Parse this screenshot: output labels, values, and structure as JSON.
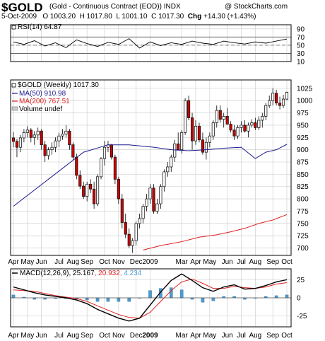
{
  "header": {
    "symbol": "$GOLD",
    "description": "(Gold - Continuous Contract (EOD))",
    "exchange": "INDX",
    "watermark": "@ StockCharts.com",
    "date": "5-Oct-2009",
    "quote_open": "O 1003.20",
    "quote_high": "H 1017.80",
    "quote_low": "L 1001.10",
    "quote_close": "C 1017.30",
    "quote_change_label": "Chg",
    "quote_change": "+14.30 (+1.43%)"
  },
  "colors": {
    "up": "#ffffff",
    "down": "#cc0000",
    "ma50": "#1a1a8c",
    "ma200": "#dd2222",
    "hist": "#4a9bd0",
    "grid": "#c9c9c9",
    "frame": "#000000",
    "macd": "#000000",
    "signal": "#dd2222"
  },
  "x_axis": {
    "top_labels": [
      "Apr",
      "May",
      "Jun",
      "Jul",
      "Aug",
      "Sep",
      "Oct",
      "Nov",
      "Dec",
      "2009",
      "Mar",
      "Apr",
      "May",
      "Jun",
      "Jul",
      "Aug",
      "Sep",
      "Oct"
    ],
    "bottom_labels": [
      "Apr",
      "May",
      "Jun",
      "Jul",
      "Aug",
      "Sep",
      "Oct",
      "Nov",
      "Dec",
      "2009",
      "Mar",
      "Apr",
      "May",
      "Jun",
      "Jul",
      "Aug",
      "Sep",
      "Oct"
    ]
  },
  "chart_data": [
    {
      "type": "line",
      "panel": "rsi",
      "legend": "RSI(14) 64.87",
      "ylim": [
        10,
        100
      ],
      "yticks": [
        10,
        30,
        50,
        70,
        90
      ],
      "levels": [
        30,
        50,
        70
      ],
      "x_weeks": [
        0,
        3,
        6,
        9,
        12,
        15,
        18,
        21,
        24,
        27,
        30,
        33,
        36,
        39,
        42,
        45,
        48,
        51,
        54,
        57,
        60,
        63,
        66,
        69,
        72,
        75,
        78
      ],
      "values": [
        58,
        52,
        61,
        48,
        56,
        44,
        63,
        54,
        47,
        57,
        52,
        66,
        43,
        58,
        49,
        56,
        52,
        60,
        55,
        52,
        60,
        56,
        53,
        58,
        55,
        60,
        65
      ]
    },
    {
      "type": "candlestick",
      "panel": "price",
      "title": "$GOLD (Weekly) 1017.30",
      "ylim": [
        685,
        1042
      ],
      "yticks": [
        700,
        725,
        750,
        775,
        800,
        825,
        850,
        875,
        900,
        925,
        950,
        975,
        1000,
        1025
      ],
      "week_start": "2008-04-07",
      "weeks": 79,
      "tick_weeks": [
        0,
        4,
        8,
        13,
        17,
        21,
        26,
        30,
        35,
        39,
        48,
        52,
        56,
        61,
        65,
        69,
        74,
        78
      ],
      "ohlc": [
        [
          924,
          936,
          905,
          917
        ],
        [
          917,
          922,
          885,
          905
        ],
        [
          905,
          930,
          895,
          924
        ],
        [
          924,
          942,
          915,
          935
        ],
        [
          935,
          948,
          925,
          940
        ],
        [
          940,
          944,
          915,
          925
        ],
        [
          925,
          938,
          910,
          930
        ],
        [
          930,
          945,
          920,
          938
        ],
        [
          938,
          942,
          900,
          910
        ],
        [
          910,
          918,
          875,
          888
        ],
        [
          888,
          905,
          880,
          900
        ],
        [
          900,
          915,
          890,
          905
        ],
        [
          905,
          925,
          895,
          918
        ],
        [
          918,
          935,
          905,
          928
        ],
        [
          928,
          942,
          920,
          932
        ],
        [
          932,
          950,
          925,
          938
        ],
        [
          938,
          942,
          900,
          910
        ],
        [
          910,
          915,
          880,
          885
        ],
        [
          885,
          892,
          840,
          848
        ],
        [
          848,
          858,
          820,
          826
        ],
        [
          826,
          835,
          800,
          805
        ],
        [
          805,
          835,
          795,
          830
        ],
        [
          830,
          840,
          812,
          820
        ],
        [
          820,
          835,
          780,
          790
        ],
        [
          790,
          850,
          785,
          845
        ],
        [
          845,
          885,
          840,
          882
        ],
        [
          882,
          918,
          868,
          905
        ],
        [
          905,
          918,
          895,
          910
        ],
        [
          910,
          912,
          880,
          885
        ],
        [
          885,
          890,
          830,
          840
        ],
        [
          840,
          845,
          790,
          800
        ],
        [
          800,
          810,
          740,
          752
        ],
        [
          752,
          770,
          720,
          728
        ],
        [
          728,
          740,
          700,
          705
        ],
        [
          705,
          720,
          690,
          715
        ],
        [
          715,
          755,
          705,
          750
        ],
        [
          750,
          770,
          740,
          760
        ],
        [
          760,
          790,
          750,
          785
        ],
        [
          785,
          810,
          775,
          800
        ],
        [
          800,
          830,
          790,
          822
        ],
        [
          822,
          830,
          770,
          775
        ],
        [
          775,
          800,
          770,
          790
        ],
        [
          790,
          830,
          780,
          825
        ],
        [
          825,
          860,
          815,
          855
        ],
        [
          855,
          875,
          845,
          865
        ],
        [
          865,
          890,
          855,
          885
        ],
        [
          885,
          920,
          875,
          912
        ],
        [
          912,
          935,
          900,
          900
        ],
        [
          900,
          940,
          892,
          935
        ],
        [
          935,
          1005,
          930,
          1000
        ],
        [
          1000,
          1010,
          960,
          965
        ],
        [
          965,
          975,
          900,
          918
        ],
        [
          918,
          960,
          910,
          948
        ],
        [
          948,
          955,
          915,
          920
        ],
        [
          920,
          935,
          890,
          895
        ],
        [
          895,
          925,
          880,
          915
        ],
        [
          915,
          935,
          905,
          928
        ],
        [
          928,
          960,
          920,
          955
        ],
        [
          955,
          990,
          945,
          980
        ],
        [
          980,
          990,
          955,
          962
        ],
        [
          962,
          975,
          945,
          968
        ],
        [
          968,
          985,
          955,
          952
        ],
        [
          952,
          958,
          935,
          940
        ],
        [
          940,
          950,
          920,
          928
        ],
        [
          928,
          950,
          922,
          945
        ],
        [
          945,
          958,
          935,
          950
        ],
        [
          950,
          960,
          935,
          938
        ],
        [
          938,
          955,
          925,
          950
        ],
        [
          950,
          962,
          945,
          955
        ],
        [
          955,
          965,
          940,
          945
        ],
        [
          945,
          968,
          940,
          960
        ],
        [
          960,
          975,
          945,
          968
        ],
        [
          968,
          995,
          960,
          990
        ],
        [
          990,
          1010,
          985,
          1000
        ],
        [
          1000,
          1025,
          990,
          1015
        ],
        [
          1015,
          1022,
          990,
          995
        ],
        [
          995,
          1008,
          982,
          990
        ],
        [
          990,
          1012,
          985,
          1003
        ],
        [
          1003,
          1018,
          1001,
          1017
        ]
      ],
      "series": [
        {
          "name": "MA(50) 910.98",
          "x_weeks": [
            0,
            10,
            20,
            27,
            33,
            40,
            45,
            50,
            55,
            60,
            65,
            69,
            72,
            75,
            78
          ],
          "values": [
            785,
            840,
            895,
            910,
            910,
            905,
            900,
            898,
            900,
            903,
            905,
            882,
            895,
            900,
            911
          ]
        },
        {
          "name": "MA(200) 767.51",
          "x_weeks": [
            37,
            42,
            48,
            53,
            58,
            62,
            66,
            70,
            74,
            78
          ],
          "values": [
            696,
            705,
            713,
            722,
            727,
            733,
            740,
            750,
            757,
            768
          ]
        }
      ],
      "legend_volume": "Volume undef"
    },
    {
      "type": "line",
      "panel": "macd",
      "legend_prefix": "MACD(12,26,9)",
      "legend_macd": "25.167",
      "legend_signal": "20.932",
      "legend_hist": "4.234",
      "ylim": [
        -40,
        40
      ],
      "yticks": [
        -25,
        0,
        25
      ],
      "x_weeks": [
        0,
        3,
        6,
        9,
        12,
        15,
        18,
        21,
        24,
        27,
        30,
        33,
        36,
        39,
        42,
        45,
        48,
        51,
        54,
        57,
        60,
        63,
        66,
        69,
        72,
        75,
        78
      ],
      "macd": [
        15,
        11,
        7,
        4,
        2,
        0,
        -3,
        -8,
        -16,
        -22,
        -28,
        -32,
        -28,
        -10,
        8,
        24,
        33,
        24,
        14,
        9,
        15,
        18,
        12,
        13,
        17,
        22,
        25
      ],
      "signal": [
        11,
        10,
        9,
        6,
        3,
        1,
        -1,
        -5,
        -11,
        -17,
        -23,
        -27,
        -28,
        -20,
        -5,
        10,
        22,
        26,
        20,
        13,
        13,
        16,
        14,
        13,
        15,
        19,
        21
      ],
      "histogram": [
        4,
        1,
        -2,
        -2,
        -1,
        -1,
        -2,
        -3,
        -5,
        -5,
        -5,
        -5,
        0,
        10,
        13,
        14,
        11,
        -2,
        -6,
        -4,
        2,
        2,
        -2,
        0,
        2,
        3,
        4
      ]
    }
  ]
}
